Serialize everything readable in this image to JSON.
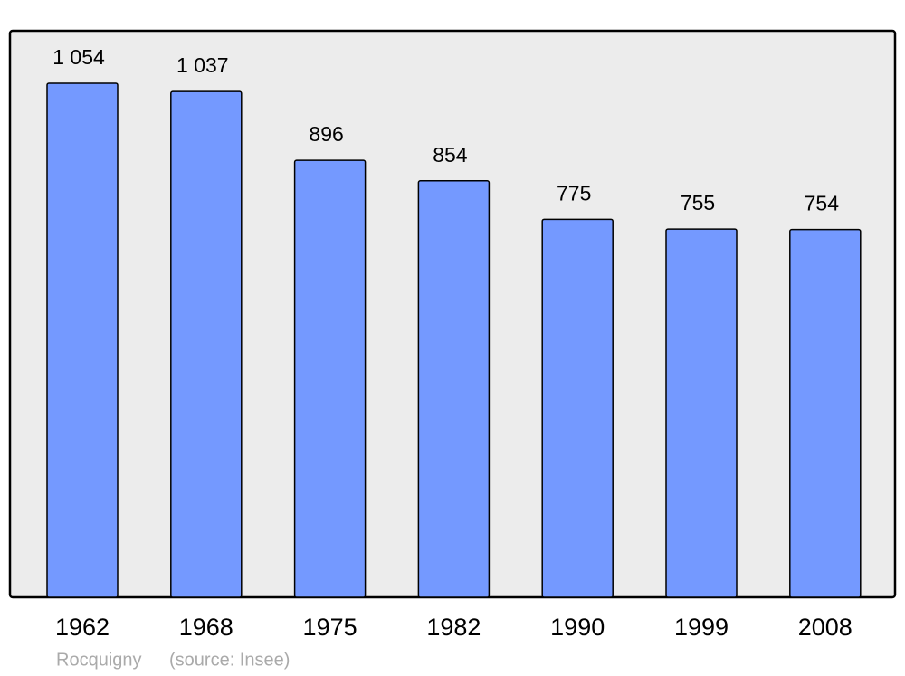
{
  "chart_data": {
    "type": "bar",
    "categories": [
      "1962",
      "1968",
      "1975",
      "1982",
      "1990",
      "1999",
      "2008"
    ],
    "values": [
      1054,
      1037,
      896,
      854,
      775,
      755,
      754
    ],
    "value_labels": [
      "1 054",
      "1 037",
      "896",
      "854",
      "775",
      "755",
      "754"
    ],
    "color": "#7499ff",
    "place": "Rocquigny",
    "source": "(source: Insee)"
  }
}
